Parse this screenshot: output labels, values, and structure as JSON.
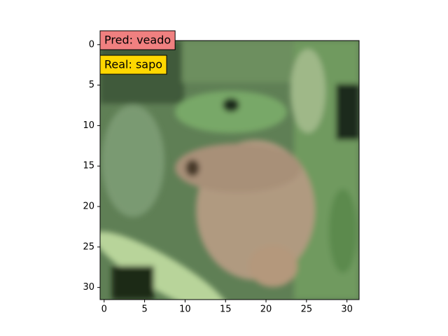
{
  "chart_data": {
    "type": "image",
    "xlim": [
      -0.5,
      31.5
    ],
    "ylim": [
      31.5,
      -0.5
    ],
    "xticks": [
      0,
      5,
      10,
      15,
      20,
      25,
      30
    ],
    "yticks": [
      0,
      5,
      10,
      15,
      20,
      25,
      30
    ],
    "annotations": [
      {
        "text": "Pred: veado",
        "color": "#f08080"
      },
      {
        "text": "Real: sapo",
        "color": "#ffd700"
      }
    ]
  }
}
